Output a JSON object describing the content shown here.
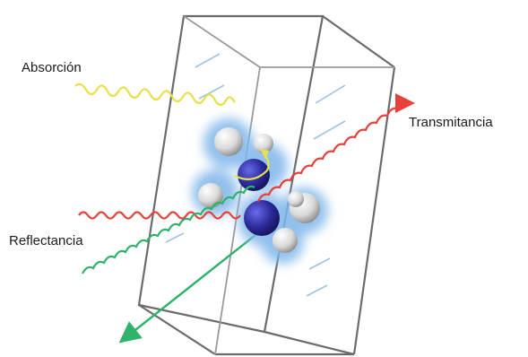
{
  "labels": {
    "absorption": "Absorción",
    "transmittance": "Transmitancia",
    "reflectance": "Reflectancia"
  },
  "colors": {
    "absorption": "#e8e04a",
    "transmittance": "#e8403a",
    "reflectance": "#2fb36a",
    "atom_center": "#2b2a9a",
    "atom_outer": "#e6e6e6",
    "glow": "#7fb6ea",
    "cuvette_edge": "#666666"
  }
}
